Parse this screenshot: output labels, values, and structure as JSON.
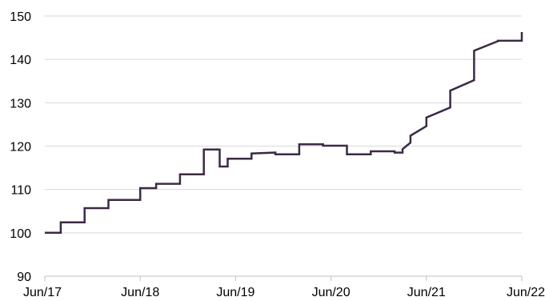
{
  "chart_data": {
    "type": "line",
    "step": true,
    "title": "",
    "xlabel": "",
    "ylabel": "",
    "ylim": [
      90,
      150
    ],
    "yticks": [
      90,
      100,
      110,
      120,
      130,
      140,
      150
    ],
    "xlim": [
      "2017-06",
      "2022-06"
    ],
    "xticks": [
      "Jun/17",
      "Jun/18",
      "Jun/19",
      "Jun/20",
      "Jun/21",
      "Jun/22"
    ],
    "grid": {
      "horizontal": true,
      "vertical": false
    },
    "legend": "none",
    "series": [
      {
        "color": "#3b2a45",
        "x": [
          "2017-06",
          "2017-08",
          "2017-08",
          "2017-11",
          "2017-11",
          "2018-02",
          "2018-02",
          "2018-06",
          "2018-06",
          "2018-08",
          "2018-08",
          "2018-11",
          "2018-11",
          "2019-02",
          "2019-02",
          "2019-04",
          "2019-04",
          "2019-05",
          "2019-05",
          "2019-08",
          "2019-08",
          "2019-11",
          "2019-11",
          "2020-02",
          "2020-02",
          "2020-05",
          "2020-05",
          "2020-08",
          "2020-08",
          "2020-11",
          "2020-11",
          "2021-02",
          "2021-02",
          "2021-03",
          "2021-03",
          "2021-04",
          "2021-04",
          "2021-06",
          "2021-06",
          "2021-09",
          "2021-09",
          "2021-12",
          "2021-12",
          "2022-03",
          "2022-03",
          "2022-06",
          "2022-06"
        ],
        "values": [
          100,
          100,
          102.4,
          102.4,
          105.7,
          105.7,
          107.6,
          107.6,
          110.3,
          110.3,
          111.3,
          111.3,
          113.5,
          113.5,
          119.2,
          119.2,
          115.3,
          115.3,
          117.1,
          117.1,
          118.3,
          118.5,
          118.1,
          118.1,
          120.4,
          120.4,
          120.1,
          120.1,
          118.1,
          118.1,
          118.8,
          118.8,
          118.5,
          118.5,
          119.3,
          120.8,
          122.4,
          124.6,
          126.6,
          128.9,
          132.8,
          135.2,
          142.0,
          144.2,
          144.3,
          144.3,
          146.3
        ]
      }
    ]
  }
}
